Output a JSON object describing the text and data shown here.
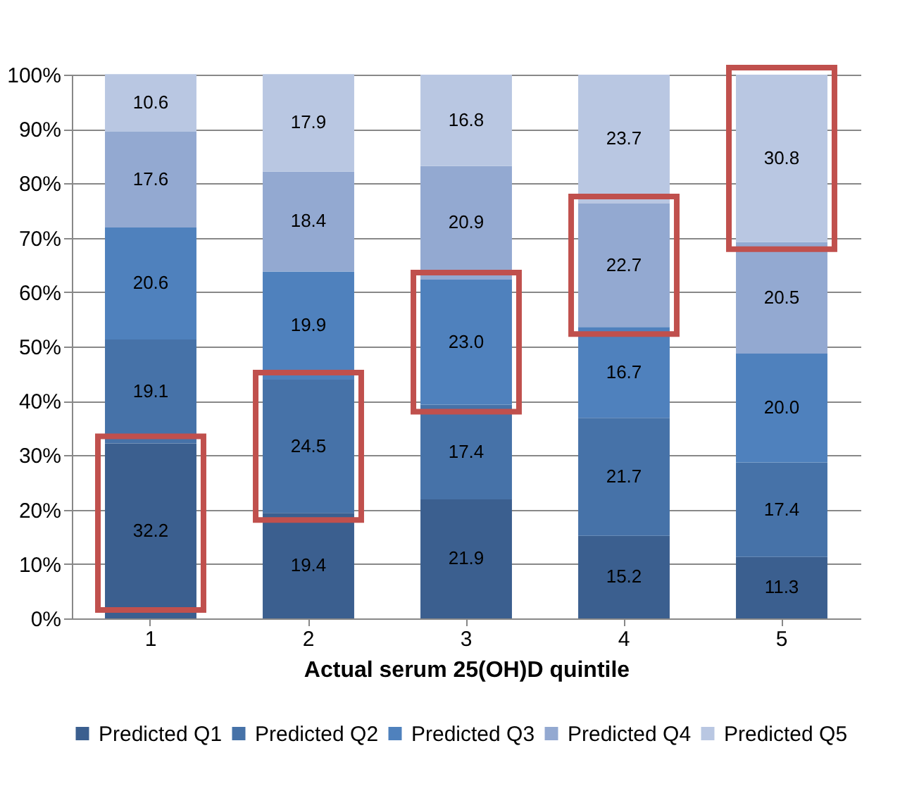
{
  "chart_data": {
    "type": "bar",
    "stacked": true,
    "xlabel": "Actual serum 25(OH)D quintile",
    "categories": [
      "1",
      "2",
      "3",
      "4",
      "5"
    ],
    "series": [
      {
        "name": "Predicted Q1",
        "color": "#3b5f8f",
        "values": [
          32.2,
          19.4,
          21.9,
          15.2,
          11.3
        ],
        "value_labels": [
          "32.2",
          "19.4",
          "21.9",
          "15.2",
          "11.3"
        ]
      },
      {
        "name": "Predicted Q2",
        "color": "#4672a8",
        "values": [
          19.1,
          24.5,
          17.4,
          21.7,
          17.4
        ],
        "value_labels": [
          "19.1",
          "24.5",
          "17.4",
          "21.7",
          "17.4"
        ]
      },
      {
        "name": "Predicted Q3",
        "color": "#4f81bd",
        "values": [
          20.6,
          19.9,
          23.0,
          16.7,
          20.0
        ],
        "value_labels": [
          "20.6",
          "19.9",
          "23.0",
          "16.7",
          "20.0"
        ]
      },
      {
        "name": "Predicted Q4",
        "color": "#93a9d1",
        "values": [
          17.6,
          18.4,
          20.9,
          22.7,
          20.5
        ],
        "value_labels": [
          "17.6",
          "18.4",
          "20.9",
          "22.7",
          "20.5"
        ]
      },
      {
        "name": "Predicted Q5",
        "color": "#b9c7e2",
        "values": [
          10.6,
          17.9,
          16.8,
          23.7,
          30.8
        ],
        "value_labels": [
          "10.6",
          "17.9",
          "16.8",
          "23.7",
          "30.8"
        ]
      }
    ],
    "ylim": [
      0,
      100
    ],
    "yticks": [
      {
        "value": 0,
        "label": "0%"
      },
      {
        "value": 10,
        "label": "10%"
      },
      {
        "value": 20,
        "label": "20%"
      },
      {
        "value": 30,
        "label": "30%"
      },
      {
        "value": 40,
        "label": "40%"
      },
      {
        "value": 50,
        "label": "50%"
      },
      {
        "value": 60,
        "label": "60%"
      },
      {
        "value": 70,
        "label": "70%"
      },
      {
        "value": 80,
        "label": "80%"
      },
      {
        "value": 90,
        "label": "90%"
      },
      {
        "value": 100,
        "label": "100%"
      }
    ],
    "grid": "y",
    "legend": "bottom"
  }
}
